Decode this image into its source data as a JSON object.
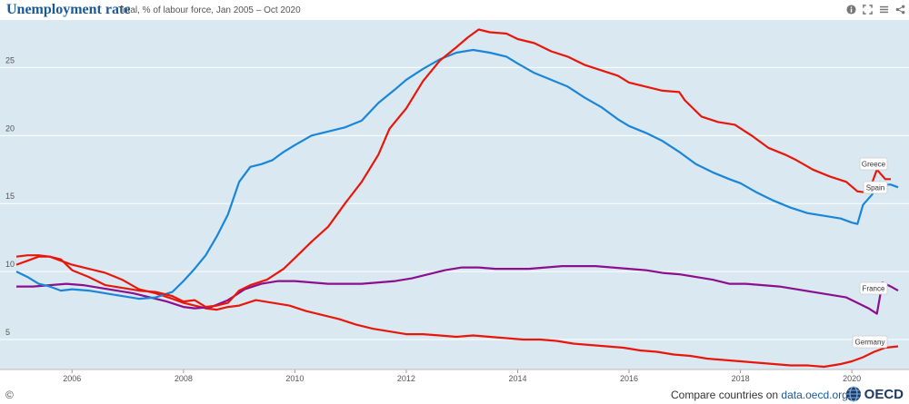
{
  "header": {
    "title": "Unemployment rate",
    "subtitle": "Total, % of labour force, Jan 2005 – Oct 2020"
  },
  "toolbar": {
    "icons": [
      "info-icon",
      "fullscreen-icon",
      "menu-icon",
      "share-icon"
    ]
  },
  "footer": {
    "copyright": "©",
    "compare_prefix": "Compare countries on ",
    "compare_link": "data.oecd.org",
    "logo_text": "OECD"
  },
  "colors": {
    "background": "#d9e8f1",
    "gridline": "#ffffff",
    "Greece": "#e8170a",
    "Spain": "#1a86d8",
    "France": "#8b0f8e",
    "Germany": "#e8170a"
  },
  "chart_data": {
    "type": "line",
    "title": "Unemployment rate",
    "subtitle": "Total, % of labour force, Jan 2005 – Oct 2020",
    "xlim": [
      2005.0,
      2020.83
    ],
    "ylim": [
      2.8,
      28.5
    ],
    "x_ticks": [
      "2006",
      "2008",
      "2010",
      "2012",
      "2014",
      "2016",
      "2018",
      "2020"
    ],
    "y_ticks": [
      "5",
      "10",
      "15",
      "20",
      "25"
    ],
    "grid": true,
    "legend": "direct labels at line ends",
    "series": [
      {
        "name": "Greece",
        "points": [
          [
            2005.0,
            10.5
          ],
          [
            2005.2,
            10.8
          ],
          [
            2005.4,
            11.1
          ],
          [
            2005.6,
            11.1
          ],
          [
            2005.8,
            10.9
          ],
          [
            2006.0,
            10.1
          ],
          [
            2006.3,
            9.6
          ],
          [
            2006.6,
            9.0
          ],
          [
            2006.9,
            8.8
          ],
          [
            2007.2,
            8.6
          ],
          [
            2007.5,
            8.5
          ],
          [
            2007.8,
            8.2
          ],
          [
            2008.0,
            7.8
          ],
          [
            2008.2,
            7.9
          ],
          [
            2008.4,
            7.4
          ],
          [
            2008.6,
            7.5
          ],
          [
            2008.8,
            7.7
          ],
          [
            2009.0,
            8.6
          ],
          [
            2009.2,
            9.0
          ],
          [
            2009.5,
            9.4
          ],
          [
            2009.8,
            10.2
          ],
          [
            2010.0,
            11.0
          ],
          [
            2010.3,
            12.2
          ],
          [
            2010.6,
            13.3
          ],
          [
            2010.9,
            15.0
          ],
          [
            2011.2,
            16.6
          ],
          [
            2011.5,
            18.6
          ],
          [
            2011.7,
            20.5
          ],
          [
            2012.0,
            22.0
          ],
          [
            2012.3,
            24.0
          ],
          [
            2012.6,
            25.5
          ],
          [
            2012.9,
            26.5
          ],
          [
            2013.1,
            27.2
          ],
          [
            2013.3,
            27.8
          ],
          [
            2013.5,
            27.6
          ],
          [
            2013.8,
            27.5
          ],
          [
            2014.0,
            27.1
          ],
          [
            2014.3,
            26.8
          ],
          [
            2014.6,
            26.2
          ],
          [
            2014.9,
            25.8
          ],
          [
            2015.2,
            25.2
          ],
          [
            2015.5,
            24.8
          ],
          [
            2015.8,
            24.4
          ],
          [
            2016.0,
            23.9
          ],
          [
            2016.3,
            23.6
          ],
          [
            2016.6,
            23.3
          ],
          [
            2016.9,
            23.2
          ],
          [
            2017.0,
            22.6
          ],
          [
            2017.3,
            21.4
          ],
          [
            2017.6,
            21.0
          ],
          [
            2017.9,
            20.8
          ],
          [
            2018.2,
            20.0
          ],
          [
            2018.5,
            19.1
          ],
          [
            2018.8,
            18.6
          ],
          [
            2019.0,
            18.2
          ],
          [
            2019.3,
            17.5
          ],
          [
            2019.6,
            17.0
          ],
          [
            2019.9,
            16.6
          ],
          [
            2020.1,
            15.9
          ],
          [
            2020.3,
            15.8
          ],
          [
            2020.45,
            17.5
          ],
          [
            2020.6,
            16.8
          ],
          [
            2020.7,
            16.8
          ]
        ]
      },
      {
        "name": "Spain",
        "points": [
          [
            2005.0,
            10.0
          ],
          [
            2005.2,
            9.6
          ],
          [
            2005.4,
            9.1
          ],
          [
            2005.6,
            8.9
          ],
          [
            2005.8,
            8.6
          ],
          [
            2006.0,
            8.7
          ],
          [
            2006.3,
            8.6
          ],
          [
            2006.6,
            8.4
          ],
          [
            2006.9,
            8.2
          ],
          [
            2007.2,
            8.0
          ],
          [
            2007.5,
            8.1
          ],
          [
            2007.8,
            8.5
          ],
          [
            2008.0,
            9.3
          ],
          [
            2008.2,
            10.2
          ],
          [
            2008.4,
            11.2
          ],
          [
            2008.6,
            12.6
          ],
          [
            2008.8,
            14.2
          ],
          [
            2009.0,
            16.6
          ],
          [
            2009.2,
            17.7
          ],
          [
            2009.4,
            17.9
          ],
          [
            2009.6,
            18.2
          ],
          [
            2009.8,
            18.8
          ],
          [
            2010.0,
            19.3
          ],
          [
            2010.3,
            20.0
          ],
          [
            2010.6,
            20.3
          ],
          [
            2010.9,
            20.6
          ],
          [
            2011.2,
            21.1
          ],
          [
            2011.5,
            22.4
          ],
          [
            2011.8,
            23.4
          ],
          [
            2012.0,
            24.1
          ],
          [
            2012.3,
            24.9
          ],
          [
            2012.6,
            25.6
          ],
          [
            2012.9,
            26.1
          ],
          [
            2013.2,
            26.3
          ],
          [
            2013.5,
            26.1
          ],
          [
            2013.8,
            25.8
          ],
          [
            2014.0,
            25.3
          ],
          [
            2014.3,
            24.6
          ],
          [
            2014.6,
            24.1
          ],
          [
            2014.9,
            23.6
          ],
          [
            2015.2,
            22.8
          ],
          [
            2015.5,
            22.1
          ],
          [
            2015.8,
            21.2
          ],
          [
            2016.0,
            20.7
          ],
          [
            2016.3,
            20.2
          ],
          [
            2016.6,
            19.6
          ],
          [
            2016.9,
            18.8
          ],
          [
            2017.2,
            17.9
          ],
          [
            2017.5,
            17.3
          ],
          [
            2017.8,
            16.8
          ],
          [
            2018.0,
            16.5
          ],
          [
            2018.3,
            15.8
          ],
          [
            2018.6,
            15.2
          ],
          [
            2018.9,
            14.7
          ],
          [
            2019.2,
            14.3
          ],
          [
            2019.5,
            14.1
          ],
          [
            2019.8,
            13.9
          ],
          [
            2020.0,
            13.6
          ],
          [
            2020.1,
            13.5
          ],
          [
            2020.2,
            14.9
          ],
          [
            2020.35,
            15.6
          ],
          [
            2020.5,
            16.4
          ],
          [
            2020.7,
            16.4
          ],
          [
            2020.83,
            16.2
          ]
        ]
      },
      {
        "name": "France",
        "points": [
          [
            2005.0,
            8.9
          ],
          [
            2005.3,
            8.9
          ],
          [
            2005.6,
            9.0
          ],
          [
            2005.9,
            9.1
          ],
          [
            2006.2,
            9.0
          ],
          [
            2006.5,
            8.8
          ],
          [
            2006.8,
            8.6
          ],
          [
            2007.1,
            8.4
          ],
          [
            2007.4,
            8.1
          ],
          [
            2007.7,
            7.8
          ],
          [
            2008.0,
            7.4
          ],
          [
            2008.2,
            7.3
          ],
          [
            2008.5,
            7.4
          ],
          [
            2008.8,
            7.9
          ],
          [
            2009.1,
            8.7
          ],
          [
            2009.4,
            9.1
          ],
          [
            2009.7,
            9.3
          ],
          [
            2010.0,
            9.3
          ],
          [
            2010.3,
            9.2
          ],
          [
            2010.6,
            9.1
          ],
          [
            2010.9,
            9.1
          ],
          [
            2011.2,
            9.1
          ],
          [
            2011.5,
            9.2
          ],
          [
            2011.8,
            9.3
          ],
          [
            2012.1,
            9.5
          ],
          [
            2012.4,
            9.8
          ],
          [
            2012.7,
            10.1
          ],
          [
            2013.0,
            10.3
          ],
          [
            2013.3,
            10.3
          ],
          [
            2013.6,
            10.2
          ],
          [
            2013.9,
            10.2
          ],
          [
            2014.2,
            10.2
          ],
          [
            2014.5,
            10.3
          ],
          [
            2014.8,
            10.4
          ],
          [
            2015.1,
            10.4
          ],
          [
            2015.4,
            10.4
          ],
          [
            2015.7,
            10.3
          ],
          [
            2016.0,
            10.2
          ],
          [
            2016.3,
            10.1
          ],
          [
            2016.6,
            9.9
          ],
          [
            2016.9,
            9.8
          ],
          [
            2017.2,
            9.6
          ],
          [
            2017.5,
            9.4
          ],
          [
            2017.8,
            9.1
          ],
          [
            2018.1,
            9.1
          ],
          [
            2018.4,
            9.0
          ],
          [
            2018.7,
            8.9
          ],
          [
            2019.0,
            8.7
          ],
          [
            2019.3,
            8.5
          ],
          [
            2019.6,
            8.3
          ],
          [
            2019.9,
            8.1
          ],
          [
            2020.1,
            7.7
          ],
          [
            2020.3,
            7.3
          ],
          [
            2020.45,
            6.9
          ],
          [
            2020.55,
            9.2
          ],
          [
            2020.7,
            8.9
          ],
          [
            2020.83,
            8.6
          ]
        ]
      },
      {
        "name": "Germany",
        "points": [
          [
            2005.0,
            11.1
          ],
          [
            2005.2,
            11.2
          ],
          [
            2005.4,
            11.2
          ],
          [
            2005.6,
            11.1
          ],
          [
            2005.8,
            10.8
          ],
          [
            2006.0,
            10.5
          ],
          [
            2006.3,
            10.2
          ],
          [
            2006.6,
            9.9
          ],
          [
            2006.9,
            9.4
          ],
          [
            2007.2,
            8.7
          ],
          [
            2007.5,
            8.4
          ],
          [
            2007.8,
            8.0
          ],
          [
            2008.0,
            7.7
          ],
          [
            2008.2,
            7.5
          ],
          [
            2008.4,
            7.3
          ],
          [
            2008.6,
            7.2
          ],
          [
            2008.8,
            7.4
          ],
          [
            2009.0,
            7.5
          ],
          [
            2009.3,
            7.9
          ],
          [
            2009.6,
            7.7
          ],
          [
            2009.9,
            7.5
          ],
          [
            2010.2,
            7.1
          ],
          [
            2010.5,
            6.8
          ],
          [
            2010.8,
            6.5
          ],
          [
            2011.1,
            6.1
          ],
          [
            2011.4,
            5.8
          ],
          [
            2011.7,
            5.6
          ],
          [
            2012.0,
            5.4
          ],
          [
            2012.3,
            5.4
          ],
          [
            2012.6,
            5.3
          ],
          [
            2012.9,
            5.2
          ],
          [
            2013.2,
            5.3
          ],
          [
            2013.5,
            5.2
          ],
          [
            2013.8,
            5.1
          ],
          [
            2014.1,
            5.0
          ],
          [
            2014.4,
            5.0
          ],
          [
            2014.7,
            4.9
          ],
          [
            2015.0,
            4.7
          ],
          [
            2015.3,
            4.6
          ],
          [
            2015.6,
            4.5
          ],
          [
            2015.9,
            4.4
          ],
          [
            2016.2,
            4.2
          ],
          [
            2016.5,
            4.1
          ],
          [
            2016.8,
            3.9
          ],
          [
            2017.1,
            3.8
          ],
          [
            2017.4,
            3.6
          ],
          [
            2017.7,
            3.5
          ],
          [
            2018.0,
            3.4
          ],
          [
            2018.3,
            3.3
          ],
          [
            2018.6,
            3.2
          ],
          [
            2018.9,
            3.1
          ],
          [
            2019.2,
            3.1
          ],
          [
            2019.5,
            3.0
          ],
          [
            2019.8,
            3.2
          ],
          [
            2020.0,
            3.4
          ],
          [
            2020.2,
            3.7
          ],
          [
            2020.4,
            4.1
          ],
          [
            2020.6,
            4.4
          ],
          [
            2020.83,
            4.5
          ]
        ]
      }
    ],
    "annotations": [
      {
        "text": "Greece",
        "series": "Greece"
      },
      {
        "text": "Spain",
        "series": "Spain"
      },
      {
        "text": "France",
        "series": "France"
      },
      {
        "text": "Germany",
        "series": "Germany"
      }
    ]
  }
}
